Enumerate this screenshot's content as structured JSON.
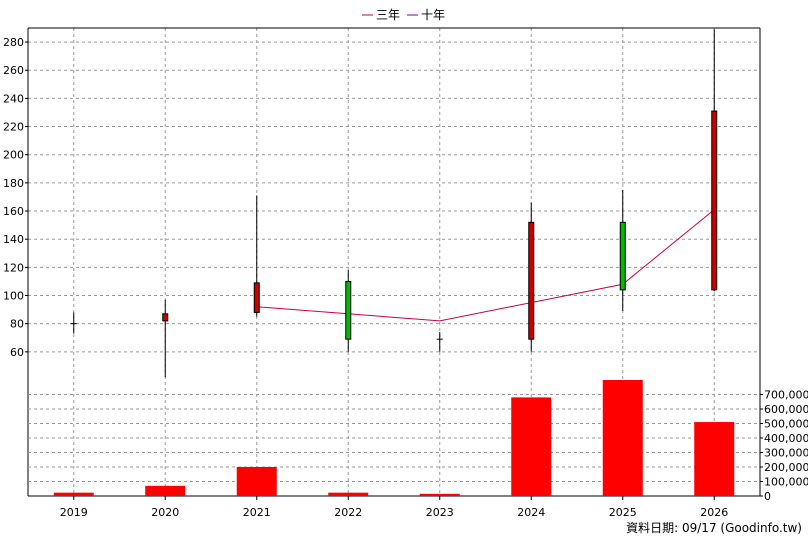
{
  "legend": [
    {
      "name": "三年",
      "color": "#cc0044"
    },
    {
      "name": "十年",
      "color": "#7700aa"
    }
  ],
  "source_note": "資料日期: 09/17  (Goodinfo.tw)",
  "chart_data": [
    {
      "type": "candlestick",
      "categories": [
        "2019",
        "2020",
        "2021",
        "2022",
        "2023",
        "2024",
        "2025",
        "2026"
      ],
      "ylim": [
        40,
        290
      ],
      "yticks": [
        60,
        80,
        100,
        120,
        140,
        160,
        180,
        200,
        220,
        240,
        260,
        280
      ],
      "grid": true,
      "legend_position": "top-center",
      "candles": [
        {
          "x": "2019",
          "open": 80,
          "close": 80,
          "high": 88,
          "low": 73,
          "color": "#000000"
        },
        {
          "x": "2020",
          "open": 82,
          "close": 87,
          "high": 97,
          "low": 42,
          "color": "#cc0000"
        },
        {
          "x": "2021",
          "open": 88,
          "close": 109,
          "high": 171,
          "low": 85,
          "color": "#cc0000"
        },
        {
          "x": "2022",
          "open": 110,
          "close": 69,
          "high": 118,
          "low": 60,
          "color": "#00bb00"
        },
        {
          "x": "2023",
          "open": 69,
          "close": 69,
          "high": 74,
          "low": 60,
          "color": "#000000"
        },
        {
          "x": "2024",
          "open": 69,
          "close": 152,
          "high": 166,
          "low": 60,
          "color": "#cc0000"
        },
        {
          "x": "2025",
          "open": 152,
          "close": 104,
          "high": 175,
          "low": 89,
          "color": "#00bb00"
        },
        {
          "x": "2026",
          "open": 104,
          "close": 231,
          "high": 289,
          "low": 103,
          "color": "#cc0000"
        }
      ],
      "series": [
        {
          "name": "三年",
          "x": [
            "2021",
            "2023",
            "2025",
            "2026"
          ],
          "values": [
            92,
            82,
            108,
            161
          ],
          "color": "#cc0044"
        }
      ]
    },
    {
      "type": "bar",
      "categories": [
        "2019",
        "2020",
        "2021",
        "2022",
        "2023",
        "2024",
        "2025",
        "2026"
      ],
      "values": [
        23000,
        70000,
        200000,
        23000,
        15000,
        680000,
        800000,
        510000
      ],
      "ylim": [
        0,
        800000
      ],
      "yticks": [
        0,
        100000,
        200000,
        300000,
        400000,
        500000,
        600000,
        700000
      ],
      "ytick_labels": [
        "0",
        "100,000",
        "200,000",
        "300,000",
        "400,000",
        "500,000",
        "600,000",
        "700,000"
      ],
      "color": "#ff0000",
      "grid": true
    }
  ]
}
